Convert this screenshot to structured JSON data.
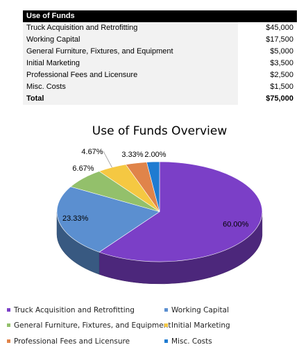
{
  "table": {
    "header": "Use of Funds",
    "rows": [
      {
        "label": "Truck Acquisition and Retrofitting",
        "amount": "$45,000"
      },
      {
        "label": "Working Capital",
        "amount": "$17,500"
      },
      {
        "label": "General Furniture, Fixtures, and Equipment",
        "amount": "$5,000"
      },
      {
        "label": "Initial Marketing",
        "amount": "$3,500"
      },
      {
        "label": "Professional Fees and Licensure",
        "amount": "$2,500"
      },
      {
        "label": "Misc. Costs",
        "amount": "$1,500"
      }
    ],
    "total": {
      "label": "Total",
      "amount": "$75,000"
    }
  },
  "chart_data": {
    "type": "pie",
    "title": "Use of Funds Overview",
    "categories": [
      "Truck Acquisition and Retrofitting",
      "Working Capital",
      "General Furniture, Fixtures, and Equipment",
      "Initial Marketing",
      "Professional Fees and Licensure",
      "Misc. Costs"
    ],
    "values": [
      60.0,
      23.33,
      6.67,
      4.67,
      3.33,
      2.0
    ],
    "labels": [
      "60.00%",
      "23.33%",
      "6.67%",
      "4.67%",
      "3.33%",
      "2.00%"
    ],
    "colors": [
      "#7b3fc7",
      "#5b8fd0",
      "#93c06b",
      "#f5c842",
      "#e0844a",
      "#1f7bd1"
    ],
    "legend_position": "bottom"
  }
}
